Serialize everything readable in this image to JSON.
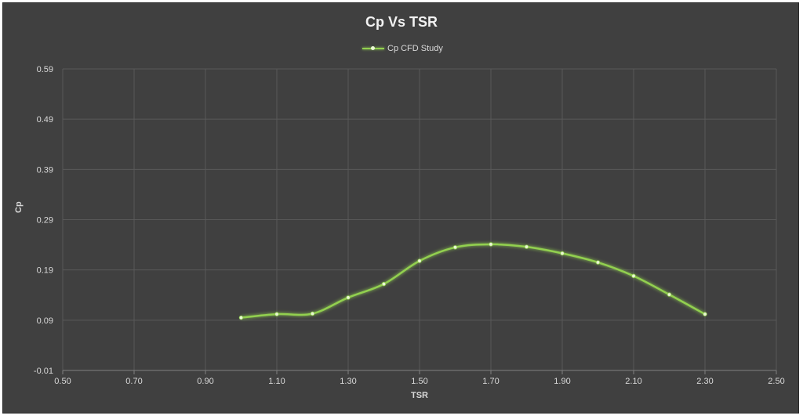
{
  "chart_data": {
    "type": "line",
    "title": "Cp Vs TSR",
    "xlabel": "TSR",
    "ylabel": "Cp",
    "xlim": [
      0.5,
      2.5
    ],
    "ylim": [
      -0.01,
      0.59
    ],
    "x_ticks": [
      "0.50",
      "0.70",
      "0.90",
      "1.10",
      "1.30",
      "1.50",
      "1.70",
      "1.90",
      "2.10",
      "2.30",
      "2.50"
    ],
    "y_ticks": [
      "-0.01",
      "0.09",
      "0.19",
      "0.29",
      "0.39",
      "0.49",
      "0.59"
    ],
    "grid": true,
    "legend_position": "top-center",
    "smooth": true,
    "series": [
      {
        "name": "Cp CFD Study",
        "color": "#92d050",
        "x": [
          1.0,
          1.1,
          1.2,
          1.3,
          1.4,
          1.5,
          1.6,
          1.7,
          1.8,
          1.9,
          2.0,
          2.1,
          2.2,
          2.3
        ],
        "y": [
          0.095,
          0.102,
          0.103,
          0.135,
          0.162,
          0.208,
          0.235,
          0.241,
          0.236,
          0.223,
          0.205,
          0.178,
          0.141,
          0.102
        ]
      }
    ]
  },
  "colors": {
    "background": "#404040",
    "grid": "#595959",
    "axis": "#7f7f7f",
    "text": "#d9d9d9",
    "series": "#92d050"
  }
}
